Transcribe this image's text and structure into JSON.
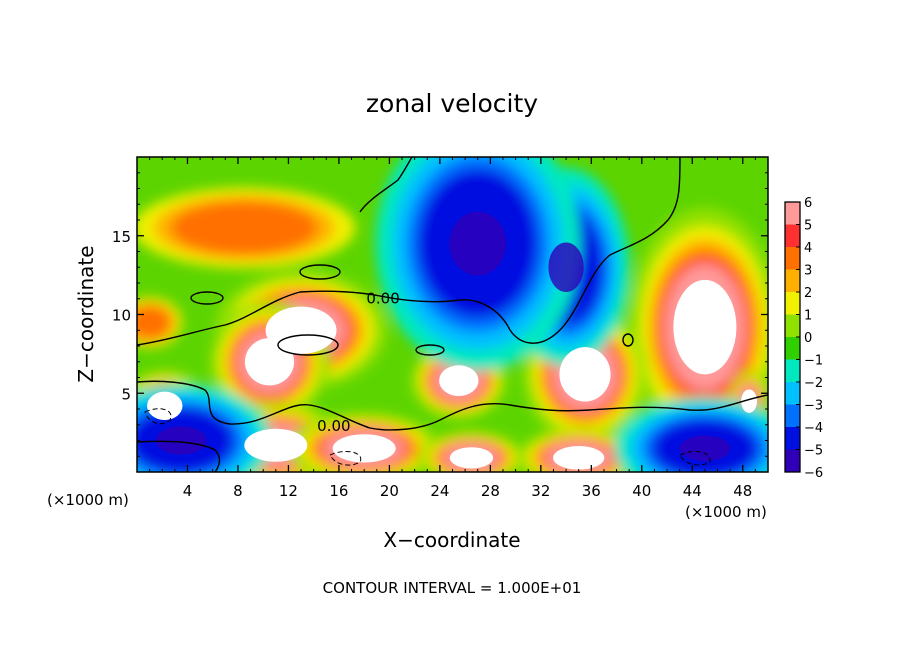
{
  "chart_data": {
    "type": "heatmap",
    "title": "zonal velocity",
    "xlabel": "X−coordinate",
    "ylabel": "Z−coordinate",
    "x_units_left": "(×1000 m)",
    "x_units_right": "(×1000 m)",
    "xlim": [
      0,
      50
    ],
    "ylim": [
      0,
      20
    ],
    "x_ticks": [
      4,
      8,
      12,
      16,
      20,
      24,
      28,
      32,
      36,
      40,
      44,
      48
    ],
    "y_ticks": [
      5,
      10,
      15
    ],
    "colorbar": {
      "levels": [
        -6,
        -5,
        -4,
        -3,
        -2,
        -1,
        0,
        1,
        2,
        3,
        4,
        5,
        6
      ],
      "labels": [
        "−6",
        "−5",
        "−4",
        "−3",
        "−2",
        "−1",
        "0",
        "1",
        "2",
        "3",
        "4",
        "5",
        "6"
      ],
      "colors": [
        "#7a00a0",
        "#3000b8",
        "#0010e0",
        "#0070ff",
        "#00c0ff",
        "#00e8c0",
        "#30d000",
        "#90e000",
        "#f0f000",
        "#ffb000",
        "#ff7000",
        "#ff3030",
        "#ff9a9a"
      ]
    },
    "contour_labels": [
      {
        "text": "0.00",
        "x": 19.5,
        "y": 10.7
      },
      {
        "text": "0.00",
        "x": 15.6,
        "y": 2.6
      }
    ],
    "footer": "CONTOUR INTERVAL = 1.000E+01",
    "field_features": [
      {
        "kind": "positive-max",
        "x": 13.0,
        "y": 9.0,
        "rx": 3.6,
        "ry": 2.0
      },
      {
        "kind": "positive-max",
        "x": 10.5,
        "y": 7.0,
        "rx": 2.5,
        "ry": 2.0
      },
      {
        "kind": "positive-max",
        "x": 25.5,
        "y": 5.8,
        "rx": 2.0,
        "ry": 1.3
      },
      {
        "kind": "positive-max",
        "x": 45.0,
        "y": 9.2,
        "rx": 3.2,
        "ry": 4.0
      },
      {
        "kind": "positive-max",
        "x": 35.5,
        "y": 6.2,
        "rx": 2.6,
        "ry": 2.3
      },
      {
        "kind": "positive-max",
        "x": 11.0,
        "y": 1.7,
        "rx": 3.2,
        "ry": 1.4
      },
      {
        "kind": "positive-max",
        "x": 18.0,
        "y": 1.5,
        "rx": 3.2,
        "ry": 1.2
      },
      {
        "kind": "positive-max",
        "x": 35.0,
        "y": 0.9,
        "rx": 2.6,
        "ry": 1.0
      },
      {
        "kind": "positive-max",
        "x": 26.5,
        "y": 0.9,
        "rx": 2.2,
        "ry": 0.9
      },
      {
        "kind": "positive-max",
        "x": 2.2,
        "y": 4.2,
        "rx": 1.8,
        "ry": 1.2
      },
      {
        "kind": "positive-max",
        "x": 48.5,
        "y": 4.5,
        "rx": 0.8,
        "ry": 1.0
      },
      {
        "kind": "moderate-positive",
        "x": 8.5,
        "y": 15.5,
        "rx": 5.5,
        "ry": 1.6
      },
      {
        "kind": "moderate-positive",
        "x": 25.0,
        "y": 9.6,
        "rx": 2.0,
        "ry": 0.6
      },
      {
        "kind": "moderate-positive",
        "x": 1.0,
        "y": 9.5,
        "rx": 1.6,
        "ry": 1.0
      },
      {
        "kind": "negative-min",
        "x": 34.0,
        "y": 13.0,
        "rx": 2.8,
        "ry": 3.5
      },
      {
        "kind": "negative-min",
        "x": 27.0,
        "y": 14.5,
        "rx": 4.5,
        "ry": 4.5
      },
      {
        "kind": "negative-min",
        "x": 3.5,
        "y": 2.0,
        "rx": 4.0,
        "ry": 2.0
      },
      {
        "kind": "negative-min",
        "x": 45.0,
        "y": 1.5,
        "rx": 4.0,
        "ry": 1.8
      }
    ]
  }
}
